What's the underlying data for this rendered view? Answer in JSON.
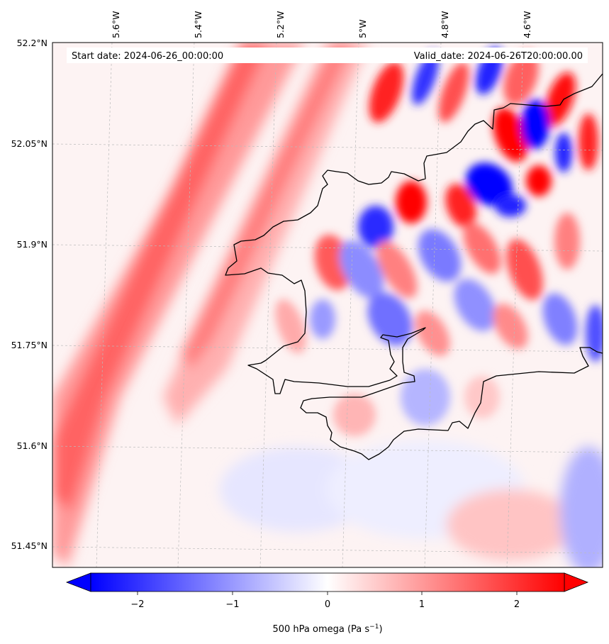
{
  "map": {
    "start_date": "Start date: 2024-06-26_00:00:00",
    "valid_date": "Valid_date: 2024-06-26T20:00:00.00",
    "lon_labels": [
      "5.6°W",
      "5.4°W",
      "5.2°W",
      "5°W",
      "4.8°W",
      "4.6°W"
    ],
    "lat_labels": [
      "52.2°N",
      "52.05°N",
      "51.9°N",
      "51.75°N",
      "51.6°N",
      "51.45°N"
    ],
    "colormap": "bwr",
    "coastline_color": "#000000",
    "gridlines": true
  },
  "colorbar": {
    "label": "500 hPa omega (Pa s",
    "label_sup": "−1",
    "label_end": ")",
    "min": -2.5,
    "max": 2.5,
    "ticks": [
      -2,
      -1,
      0,
      1,
      2
    ],
    "tick_labels": [
      "−2",
      "−1",
      "0",
      "1",
      "2"
    ],
    "extend": "both",
    "low_color": "#0000ff",
    "mid_color": "#ffffff",
    "high_color": "#ff0000"
  }
}
